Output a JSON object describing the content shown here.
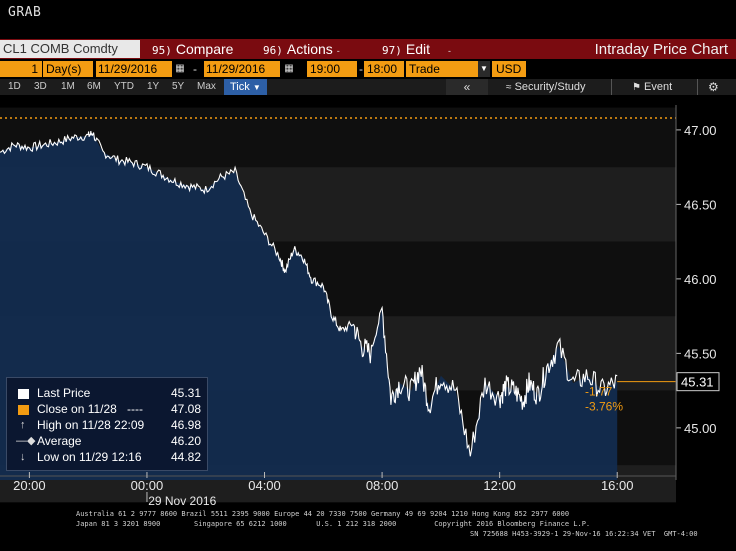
{
  "grab_label": "GRAB",
  "security": "CL1 COMB Comdty",
  "menu": {
    "compare": {
      "num": "95)",
      "label": "Compare"
    },
    "actions": {
      "num": "96)",
      "label": "Actions"
    },
    "edit": {
      "num": "97)",
      "label": "Edit"
    }
  },
  "window_title": "Intraday Price Chart",
  "controls": {
    "period_count": "1",
    "period_unit": "Day(s)",
    "start_date": "11/29/2016",
    "end_date": "11/29/2016",
    "start_time": "19:00",
    "end_time": "18:00",
    "event_type": "Trade",
    "currency": "USD"
  },
  "ranges": [
    "1D",
    "3D",
    "1M",
    "6M",
    "YTD",
    "1Y",
    "5Y",
    "Max"
  ],
  "tick_label": "Tick",
  "tools": {
    "security_study": "Security/Study",
    "event": "Event"
  },
  "colors": {
    "accent_orange": "#f39c12",
    "header_red": "#7a0b10",
    "area_fill": "#132c4f",
    "price_line": "#ffffff"
  },
  "legend": {
    "last_price_label": "Last Price",
    "last_price_value": "45.31",
    "close_label": "Close on 11/28",
    "close_dashes": "----",
    "close_value": "47.08",
    "high_label": "High on 11/28 22:09",
    "high_value": "46.98",
    "average_label": "Average",
    "average_value": "46.20",
    "low_label": "Low on 11/29 12:16",
    "low_value": "44.82"
  },
  "change": {
    "abs": "-1.77",
    "pct": "-3.76%"
  },
  "chart_data": {
    "type": "line",
    "y_ticks": [
      "47.00",
      "46.50",
      "46.00",
      "45.50",
      "45.00"
    ],
    "ylim": [
      44.65,
      47.1
    ],
    "x_ticks": [
      "20:00",
      "00:00",
      "04:00",
      "08:00",
      "12:00",
      "16:00"
    ],
    "date_label": "29 Nov 2016",
    "last_price_tag": "45.31",
    "prev_close_line": 47.08,
    "series": [
      {
        "x": [
          19.0,
          19.5,
          20.0,
          20.5,
          21.0,
          21.5,
          22.0,
          22.15,
          22.5,
          23.0,
          23.5,
          24.0,
          24.5,
          25.0,
          25.5,
          26.0,
          26.5,
          27.0,
          27.5,
          28.0,
          28.5,
          28.7,
          29.0,
          29.3,
          29.6,
          30.0,
          30.3,
          30.6,
          31.0,
          31.3,
          31.6,
          32.0,
          32.3,
          32.6,
          33.0,
          33.3,
          33.6,
          34.0,
          34.5,
          35.0,
          35.5,
          36.0,
          36.2,
          36.5,
          36.8,
          37.0,
          37.3,
          37.6,
          38.0,
          38.5,
          39.0,
          39.5,
          40.0
        ],
        "values": [
          46.85,
          46.9,
          46.88,
          46.9,
          46.92,
          46.95,
          46.96,
          46.98,
          46.85,
          46.8,
          46.78,
          46.75,
          46.7,
          46.65,
          46.62,
          46.6,
          46.68,
          46.72,
          46.45,
          46.3,
          46.15,
          46.05,
          46.2,
          46.15,
          46.0,
          45.95,
          45.75,
          45.65,
          45.7,
          45.55,
          45.5,
          45.8,
          45.2,
          45.3,
          45.25,
          45.4,
          45.15,
          45.35,
          45.25,
          44.82,
          45.3,
          45.2,
          45.28,
          45.25,
          45.18,
          45.3,
          45.22,
          45.4,
          45.55,
          45.3,
          45.35,
          45.25,
          45.31
        ]
      }
    ]
  },
  "footer": {
    "line1": "Australia 61 2 9777 8600 Brazil 5511 2395 9000 Europe 44 20 7330 7500 Germany 49 69 9204 1210 Hong Kong 852 2977 6000",
    "line2": "Japan 81 3 3201 8900        Singapore 65 6212 1000       U.S. 1 212 318 2000         Copyright 2016 Bloomberg Finance L.P.",
    "line3": "SN 725688 H453-3929-1 29-Nov-16 16:22:34 VET  GMT-4:00"
  }
}
